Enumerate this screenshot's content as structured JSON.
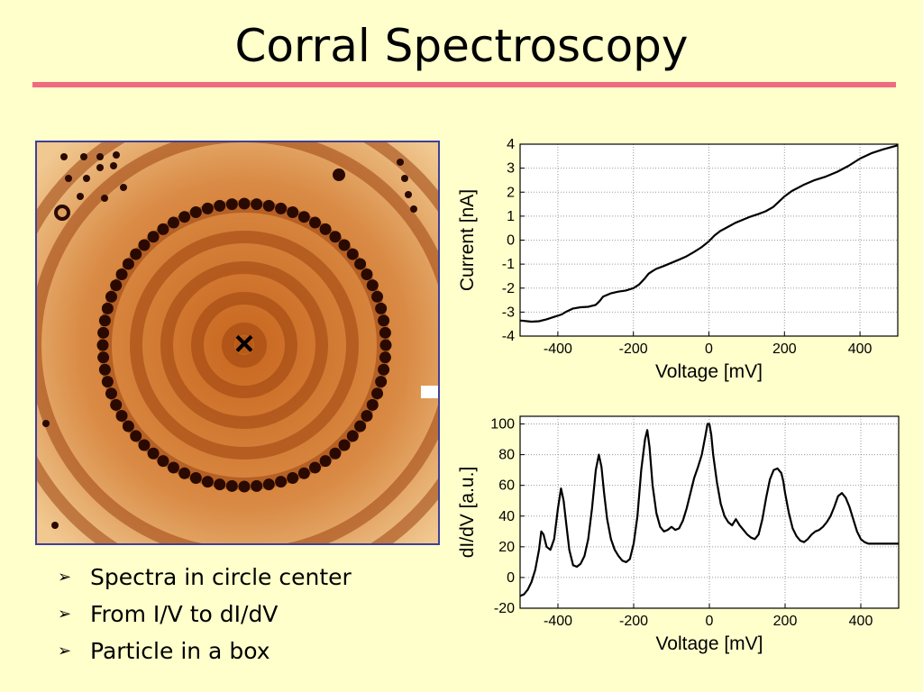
{
  "slide": {
    "title": "Corral Spectroscopy",
    "accent_color": "#f06a80",
    "background": "#ffffcc",
    "bullets": [
      "Spectra in circle center",
      "From I/V to dI/dV",
      "Particle in a box"
    ],
    "bullet_icon": "arrowhead-bullet-icon"
  },
  "stm_image": {
    "description_icon": "quantum-corral-stm-image",
    "marker": "×",
    "frame_color": "#3f3f9a"
  },
  "chart_data": [
    {
      "type": "line",
      "xlabel": "Voltage [mV]",
      "ylabel": "Current [nA]",
      "xlim": [
        -500,
        500
      ],
      "ylim": [
        -4,
        4
      ],
      "xticks": [
        -400,
        -200,
        0,
        200,
        400
      ],
      "yticks": [
        -4,
        -3,
        -2,
        -1,
        0,
        1,
        2,
        3,
        4
      ],
      "grid": true,
      "series": [
        {
          "x": [
            -500,
            -470,
            -450,
            -430,
            -410,
            -390,
            -380,
            -360,
            -340,
            -320,
            -300,
            -290,
            -280,
            -260,
            -240,
            -220,
            -200,
            -185,
            -170,
            -160,
            -150,
            -140,
            -120,
            -100,
            -80,
            -60,
            -40,
            -20,
            0,
            15,
            30,
            50,
            70,
            90,
            110,
            130,
            150,
            170,
            185,
            200,
            220,
            250,
            280,
            310,
            340,
            370,
            400,
            430,
            460,
            500
          ],
          "y": [
            -3.35,
            -3.4,
            -3.38,
            -3.3,
            -3.2,
            -3.1,
            -3.0,
            -2.85,
            -2.8,
            -2.78,
            -2.7,
            -2.55,
            -2.35,
            -2.22,
            -2.15,
            -2.1,
            -2.0,
            -1.85,
            -1.6,
            -1.4,
            -1.3,
            -1.2,
            -1.08,
            -0.95,
            -0.82,
            -0.68,
            -0.5,
            -0.3,
            -0.05,
            0.2,
            0.38,
            0.55,
            0.72,
            0.85,
            0.98,
            1.08,
            1.2,
            1.38,
            1.6,
            1.82,
            2.05,
            2.3,
            2.5,
            2.65,
            2.85,
            3.1,
            3.4,
            3.62,
            3.78,
            3.95
          ]
        }
      ]
    },
    {
      "type": "line",
      "xlabel": "Voltage [mV]",
      "ylabel": "dI/dV [a.u.]",
      "xlim": [
        -500,
        500
      ],
      "ylim": [
        -20,
        105
      ],
      "xticks": [
        -400,
        -200,
        0,
        200,
        400
      ],
      "yticks": [
        -20,
        0,
        20,
        40,
        60,
        80,
        100
      ],
      "grid": true,
      "series": [
        {
          "x": [
            -500,
            -490,
            -480,
            -470,
            -460,
            -450,
            -444,
            -438,
            -430,
            -420,
            -410,
            -400,
            -392,
            -385,
            -378,
            -370,
            -360,
            -350,
            -340,
            -330,
            -320,
            -310,
            -300,
            -292,
            -285,
            -278,
            -270,
            -260,
            -250,
            -240,
            -230,
            -220,
            -210,
            -200,
            -190,
            -180,
            -170,
            -164,
            -158,
            -150,
            -140,
            -130,
            -120,
            -110,
            -100,
            -90,
            -80,
            -70,
            -60,
            -50,
            -40,
            -30,
            -20,
            -10,
            -5,
            0,
            5,
            10,
            20,
            30,
            40,
            50,
            60,
            70,
            80,
            90,
            100,
            110,
            120,
            130,
            140,
            150,
            160,
            170,
            180,
            190,
            195,
            200,
            210,
            220,
            230,
            240,
            250,
            260,
            270,
            280,
            290,
            300,
            310,
            320,
            330,
            340,
            350,
            360,
            370,
            380,
            390,
            400,
            410,
            420,
            430,
            440,
            450,
            460,
            470,
            480,
            490,
            500
          ],
          "y": [
            -12,
            -11,
            -8,
            -3,
            5,
            18,
            30,
            28,
            20,
            18,
            25,
            45,
            58,
            50,
            35,
            18,
            8,
            7,
            9,
            14,
            25,
            45,
            70,
            80,
            72,
            55,
            38,
            25,
            18,
            14,
            11,
            10,
            12,
            22,
            40,
            70,
            90,
            96,
            85,
            60,
            42,
            33,
            30,
            31,
            33,
            31,
            32,
            37,
            45,
            55,
            65,
            72,
            80,
            93,
            100,
            100,
            93,
            80,
            62,
            48,
            40,
            36,
            34,
            38,
            34,
            31,
            28,
            26,
            25,
            28,
            38,
            52,
            64,
            70,
            71,
            68,
            63,
            55,
            42,
            32,
            27,
            24,
            23,
            25,
            28,
            30,
            31,
            33,
            36,
            40,
            46,
            53,
            55,
            52,
            46,
            38,
            30,
            25,
            23,
            22,
            22,
            22,
            22,
            22,
            22,
            22,
            22,
            22
          ]
        }
      ]
    }
  ]
}
